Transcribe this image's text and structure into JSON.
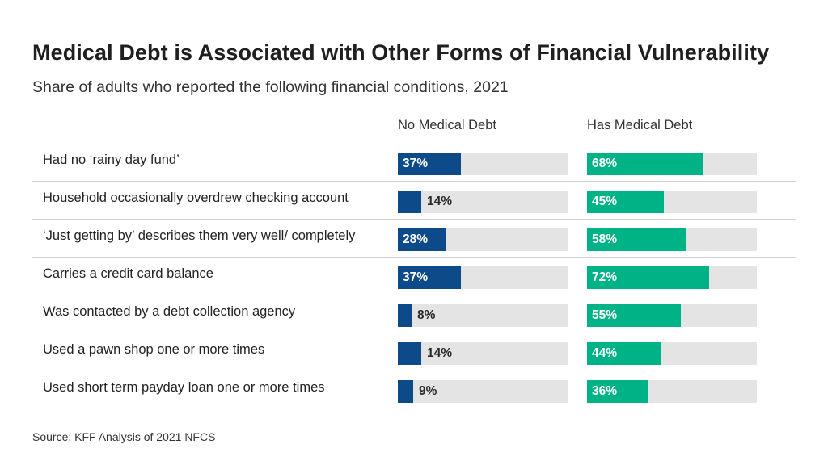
{
  "chart_data": {
    "type": "bar",
    "title": "Medical Debt is Associated with Other Forms of Financial Vulnerability",
    "subtitle": "Share of adults who reported the following financial conditions, 2021",
    "source": "Source: KFF Analysis of 2021 NFCS",
    "categories": [
      "Had no ‘rainy day fund’",
      "Household occasionally overdrew checking account",
      "‘Just getting by’ describes them very well/ completely",
      "Carries a credit card balance",
      "Was contacted by a debt collection agency",
      "Used a pawn shop one or more times",
      "Used short term payday loan one or more times"
    ],
    "series": [
      {
        "name": "No Medical Debt",
        "color": "#0d4a8a",
        "values": [
          37,
          14,
          28,
          37,
          8,
          14,
          9
        ]
      },
      {
        "name": "Has Medical Debt",
        "color": "#00b386",
        "values": [
          68,
          45,
          58,
          72,
          55,
          44,
          36
        ]
      }
    ],
    "value_suffix": "%",
    "xlim": [
      0,
      100
    ],
    "track_color": "#e4e4e4"
  }
}
